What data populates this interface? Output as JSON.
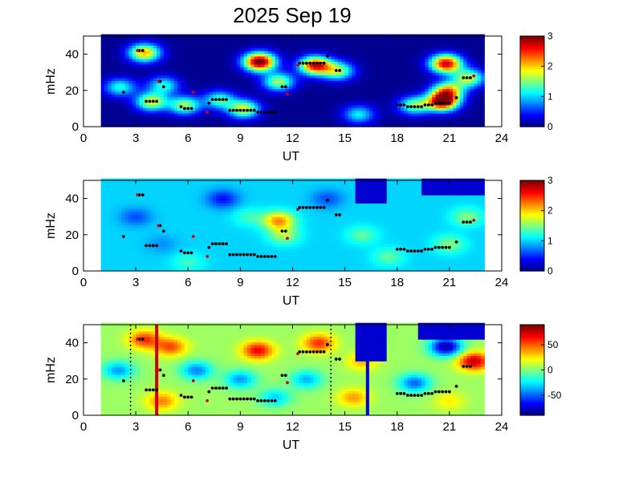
{
  "chart_data": {
    "title": "2025 Sep 19",
    "type": "heatmap",
    "panels": [
      {
        "id": "power",
        "xlabel": "UT",
        "ylabel": "mHz",
        "xlim": [
          0,
          24
        ],
        "ylim": [
          0,
          50
        ],
        "xticks": [
          "0",
          "3",
          "6",
          "9",
          "12",
          "15",
          "18",
          "21",
          "24"
        ],
        "yticks": [
          "0",
          "20",
          "40"
        ],
        "data_range": [
          1,
          23
        ],
        "colorbar": {
          "range": [
            0,
            3
          ],
          "ticks": [
            "0",
            "1",
            "2",
            "3"
          ]
        },
        "background_level": 0.05,
        "blobs": [
          {
            "t": 3.5,
            "f": 41,
            "v": 2.1
          },
          {
            "t": 3.9,
            "f": 14,
            "v": 1.8
          },
          {
            "t": 4.6,
            "f": 23,
            "v": 1.2
          },
          {
            "t": 5.8,
            "f": 12,
            "v": 1.6
          },
          {
            "t": 2.1,
            "f": 22,
            "v": 1.2
          },
          {
            "t": 7.8,
            "f": 15,
            "v": 1.3
          },
          {
            "t": 9.2,
            "f": 10,
            "v": 1.8
          },
          {
            "t": 10.1,
            "f": 36,
            "v": 3.2
          },
          {
            "t": 11.2,
            "f": 25,
            "v": 1.6
          },
          {
            "t": 13.3,
            "f": 34,
            "v": 2.7
          },
          {
            "t": 14.6,
            "f": 31,
            "v": 1.6
          },
          {
            "t": 15.8,
            "f": 7,
            "v": 1.1
          },
          {
            "t": 19.0,
            "f": 12,
            "v": 1.5
          },
          {
            "t": 20.6,
            "f": 14,
            "v": 3.0
          },
          {
            "t": 20.9,
            "f": 20,
            "v": 2.0
          },
          {
            "t": 20.8,
            "f": 35,
            "v": 2.8
          },
          {
            "t": 22.1,
            "f": 27,
            "v": 1.7
          }
        ]
      },
      {
        "id": "coherence",
        "xlabel": "UT",
        "ylabel": "mHz",
        "xlim": [
          0,
          24
        ],
        "ylim": [
          0,
          50
        ],
        "xticks": [
          "0",
          "3",
          "6",
          "9",
          "12",
          "15",
          "18",
          "21",
          "24"
        ],
        "yticks": [
          "0",
          "20",
          "40"
        ],
        "data_range": [
          1,
          23
        ],
        "colorbar": {
          "range": [
            0,
            3
          ],
          "ticks": [
            "0",
            "1",
            "2",
            "3"
          ]
        },
        "background_level": 1.0,
        "blobs": [
          {
            "t": 3.0,
            "f": 30,
            "v": 0.6
          },
          {
            "t": 4.5,
            "f": 15,
            "v": 0.8
          },
          {
            "t": 11.2,
            "f": 28,
            "v": 2.2
          },
          {
            "t": 11.5,
            "f": 20,
            "v": 1.6
          },
          {
            "t": 9.5,
            "f": 30,
            "v": 1.3
          },
          {
            "t": 8.0,
            "f": 40,
            "v": 0.4
          },
          {
            "t": 16.0,
            "f": 20,
            "v": 1.4
          },
          {
            "t": 17.5,
            "f": 8,
            "v": 1.4
          },
          {
            "t": 21.0,
            "f": 15,
            "v": 1.5
          },
          {
            "t": 22.0,
            "f": 30,
            "v": 1.5
          },
          {
            "t": 6.0,
            "f": 5,
            "v": 1.3
          },
          {
            "t": 14.0,
            "f": 40,
            "v": 0.6
          }
        ],
        "notch": {
          "t1": 15.6,
          "t2": 17.4,
          "fmin": 38
        },
        "top_cap": {
          "t1": 19.4,
          "t2": 23,
          "fmin": 42
        }
      },
      {
        "id": "phase",
        "xlabel": "UT",
        "ylabel": "mHz",
        "xlim": [
          0,
          24
        ],
        "ylim": [
          0,
          50
        ],
        "xticks": [
          "0",
          "3",
          "6",
          "9",
          "12",
          "15",
          "18",
          "21",
          "24"
        ],
        "yticks": [
          "0",
          "20",
          "40"
        ],
        "data_range": [
          1,
          23
        ],
        "colorbar": {
          "range": [
            -90,
            90
          ],
          "ticks": [
            "50",
            "0",
            "-50"
          ],
          "tick_values": [
            50,
            0,
            -50
          ]
        },
        "background_level": 5,
        "blobs": [
          {
            "t": 3.5,
            "f": 42,
            "v": 60
          },
          {
            "t": 5.0,
            "f": 38,
            "v": 55
          },
          {
            "t": 10.0,
            "f": 36,
            "v": 70
          },
          {
            "t": 13.5,
            "f": 40,
            "v": 60
          },
          {
            "t": 9.0,
            "f": 20,
            "v": -40
          },
          {
            "t": 6.5,
            "f": 25,
            "v": -45
          },
          {
            "t": 4.5,
            "f": 8,
            "v": 45
          },
          {
            "t": 11.0,
            "f": 10,
            "v": -30
          },
          {
            "t": 15.5,
            "f": 10,
            "v": 40
          },
          {
            "t": 16.0,
            "f": 30,
            "v": 35
          },
          {
            "t": 19.0,
            "f": 18,
            "v": -50
          },
          {
            "t": 20.8,
            "f": 38,
            "v": -85
          },
          {
            "t": 22.4,
            "f": 30,
            "v": 80
          },
          {
            "t": 21.0,
            "f": 8,
            "v": 25
          },
          {
            "t": 2.0,
            "f": 25,
            "v": -40
          },
          {
            "t": 12.8,
            "f": 20,
            "v": -35
          }
        ],
        "notch": {
          "t1": 15.6,
          "t2": 17.4,
          "fmin": 30
        },
        "top_cap": {
          "t1": 19.2,
          "t2": 23,
          "fmin": 42
        },
        "vertical_lines": [
          {
            "t": 4.2,
            "color": "#cc0000",
            "style": "solid"
          },
          {
            "t": 16.3,
            "color": "#0000cc",
            "style": "solid"
          },
          {
            "t": 2.7,
            "color": "#000000",
            "style": "dotted"
          },
          {
            "t": 14.2,
            "color": "#000000",
            "style": "dotted"
          }
        ]
      }
    ],
    "markers": {
      "black": [
        [
          3.2,
          42
        ],
        [
          3.4,
          42
        ],
        [
          3.6,
          14
        ],
        [
          3.8,
          14
        ],
        [
          4.0,
          14
        ],
        [
          4.2,
          14
        ],
        [
          4.4,
          25
        ],
        [
          4.6,
          22
        ],
        [
          5.6,
          11
        ],
        [
          5.8,
          10
        ],
        [
          6.0,
          10
        ],
        [
          6.2,
          10
        ],
        [
          7.2,
          13
        ],
        [
          7.4,
          15
        ],
        [
          7.6,
          15
        ],
        [
          7.8,
          15
        ],
        [
          8.0,
          15
        ],
        [
          8.2,
          15
        ],
        [
          8.4,
          9
        ],
        [
          8.6,
          9
        ],
        [
          8.8,
          9
        ],
        [
          9.0,
          9
        ],
        [
          9.2,
          9
        ],
        [
          9.4,
          9
        ],
        [
          9.6,
          9
        ],
        [
          9.8,
          9
        ],
        [
          10.0,
          8
        ],
        [
          10.2,
          8
        ],
        [
          10.4,
          8
        ],
        [
          10.6,
          8
        ],
        [
          10.8,
          8
        ],
        [
          11.0,
          8
        ],
        [
          11.4,
          22
        ],
        [
          11.6,
          22
        ],
        [
          12.4,
          35
        ],
        [
          12.6,
          35
        ],
        [
          12.8,
          35
        ],
        [
          13.0,
          35
        ],
        [
          13.2,
          35
        ],
        [
          13.4,
          35
        ],
        [
          13.6,
          35
        ],
        [
          13.8,
          35
        ],
        [
          14.0,
          39
        ],
        [
          14.5,
          31
        ],
        [
          14.7,
          31
        ],
        [
          18.0,
          12
        ],
        [
          18.2,
          12
        ],
        [
          18.4,
          12
        ],
        [
          18.6,
          11
        ],
        [
          18.8,
          11
        ],
        [
          19.0,
          11
        ],
        [
          19.2,
          11
        ],
        [
          19.4,
          11
        ],
        [
          19.6,
          12
        ],
        [
          19.8,
          12
        ],
        [
          20.0,
          12
        ],
        [
          20.2,
          13
        ],
        [
          20.4,
          13
        ],
        [
          20.6,
          13
        ],
        [
          20.8,
          13
        ],
        [
          21.0,
          13
        ],
        [
          21.4,
          16
        ],
        [
          21.8,
          27
        ],
        [
          22.0,
          27
        ],
        [
          22.2,
          27
        ],
        [
          2.3,
          19
        ]
      ],
      "red": [
        [
          3.1,
          42
        ],
        [
          4.3,
          25
        ],
        [
          6.3,
          19
        ],
        [
          7.1,
          8
        ],
        [
          11.7,
          18
        ],
        [
          12.3,
          34
        ],
        [
          22.4,
          28
        ]
      ]
    }
  }
}
